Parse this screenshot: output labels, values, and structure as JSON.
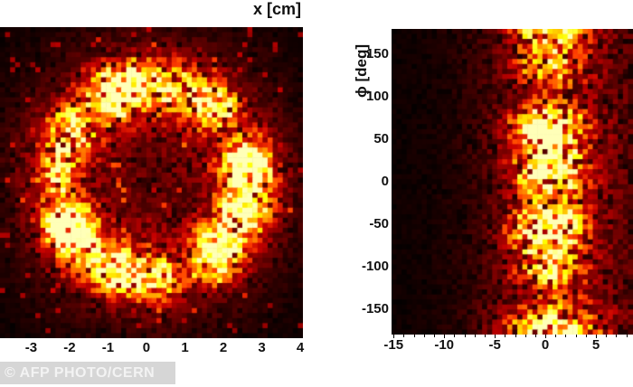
{
  "figure": {
    "credit": "© AFP PHOTO/CERN"
  },
  "chart_data": [
    {
      "type": "heatmap",
      "panel": "left",
      "title": "",
      "xlabel": "x [cm]",
      "ylabel": "",
      "x_ticks": [
        -3,
        -2,
        -1,
        0,
        1,
        2,
        3,
        4
      ],
      "x_min": -3.81,
      "x_max": 4.07,
      "colormap": "hot",
      "grid": false,
      "content": "Noisy 2D hit-density histogram (detector event display): bright yellow-white ring of radius ~2.5 cm centred near x ~ 0.15 cm, dark-red speckle noise inside the ring, intensity falling off to black toward the plot corners",
      "pattern": {
        "kind": "ring",
        "seed": 1337,
        "cols": 60,
        "rows": 62,
        "center": [
          0.507,
          0.494
        ],
        "ring_radius": 0.315,
        "ring_sigma": 0.058,
        "ring_peak": 0.92,
        "inner_base": 0.3,
        "outer_base": 0.34,
        "outer_decay": 0.16,
        "ang_harmonics": [
          [
            3,
            0.26,
            0.8
          ],
          [
            7,
            0.22,
            2.1
          ],
          [
            11,
            0.16,
            4.4
          ]
        ]
      }
    },
    {
      "type": "heatmap",
      "panel": "right",
      "title": "",
      "xlabel": "",
      "ylabel": "ϕ [deg]",
      "x_ticks": [
        -15,
        -10,
        -5,
        0,
        5
      ],
      "x_min": -15.2,
      "x_max": 8.66,
      "y_ticks": [
        150,
        100,
        50,
        0,
        -50,
        -100,
        -150
      ],
      "y_min": -180,
      "y_max": 180,
      "colormap": "hot",
      "grid": false,
      "content": "Noisy 2D histogram: bright vertical yellow band centred near x ~ 0.4 spanning the full azimuth range -180 to 180 deg, dense dark-red noise to the right of the band, near-black sparse background on the left",
      "pattern": {
        "kind": "band",
        "seed": 777,
        "cols": 48,
        "rows": 61,
        "band_center": 0.648,
        "band_sigma": 0.096,
        "band_peak": 0.9,
        "shoulder_sigma": 0.23,
        "shoulder_peak": 0.17,
        "bg_left": 0.025,
        "bg_right": 0.1,
        "y_harmonics": [
          [
            0.055,
            0.3,
            1.2
          ],
          [
            0.023,
            0.25,
            4.0
          ],
          [
            0.11,
            0.2,
            2.6
          ]
        ],
        "bottom_flare": 0.32
      }
    }
  ]
}
